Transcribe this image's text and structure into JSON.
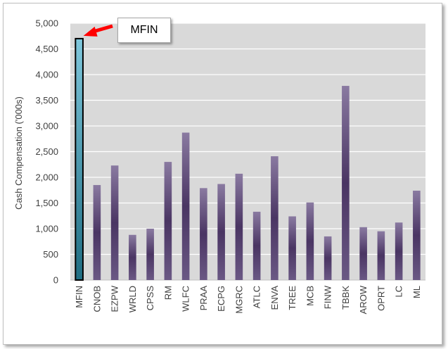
{
  "chart_data": {
    "type": "bar",
    "title": "",
    "xlabel": "",
    "ylabel": "Cash Compensation ('000s)",
    "ylim": [
      0,
      5000
    ],
    "yticks": [
      0,
      500,
      1000,
      1500,
      2000,
      2500,
      3000,
      3500,
      4000,
      4500,
      5000
    ],
    "ytick_labels": [
      "0",
      "500",
      "1,000",
      "1,500",
      "2,000",
      "2,500",
      "3,000",
      "3,500",
      "4,000",
      "4,500",
      "5,000"
    ],
    "grid": true,
    "categories": [
      "MFIN",
      "CNOB",
      "EZPW",
      "WRLD",
      "CPSS",
      "RM",
      "WLFC",
      "PRAA",
      "ECPG",
      "MGRC",
      "ATLC",
      "ENVA",
      "TREE",
      "MCB",
      "FINW",
      "TBBK",
      "AROW",
      "OPRT",
      "LC",
      "ML"
    ],
    "values": [
      4700,
      1850,
      2230,
      880,
      1000,
      2300,
      2870,
      1790,
      1870,
      2070,
      1330,
      2410,
      1240,
      1510,
      850,
      3780,
      1030,
      950,
      1120,
      1740
    ],
    "highlight": "MFIN",
    "annotation": "MFIN",
    "colors": {
      "bar": "#5b4675",
      "bar_light": "#8a7aa1",
      "highlight": "#4bacc6",
      "highlight_dark": "#1f5f72",
      "plot_bg": "#d9d9d9",
      "arrow": "#ff0000"
    }
  }
}
